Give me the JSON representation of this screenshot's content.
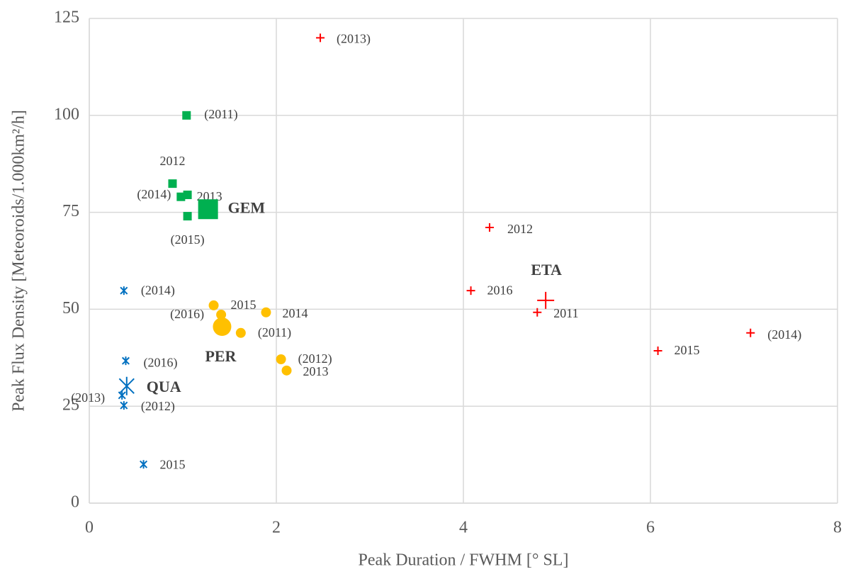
{
  "chart_data": {
    "type": "scatter",
    "x_label": "Peak Duration / FWHM [° SL]",
    "y_label": "Peak Flux Density [Meteoroids/1.000km²/h]",
    "xlim": [
      0,
      8
    ],
    "xticks": [
      0,
      2,
      4,
      6,
      8
    ],
    "ylim": [
      0,
      125
    ],
    "yticks": [
      0,
      25,
      50,
      75,
      100,
      125
    ],
    "grid": true,
    "series": [
      {
        "name": "GEM",
        "color": "#00b050",
        "marker": "square",
        "x": [
          1.04,
          0.89,
          0.98,
          1.05,
          1.05
        ],
        "values": [
          100,
          82.4,
          79,
          79.5,
          74
        ],
        "labels": [
          "(2011)",
          "2012",
          "(2014)",
          "2013",
          "(2015)"
        ],
        "mean": {
          "x": 1.27,
          "y": 75.8
        }
      },
      {
        "name": "PER",
        "color": "#ffc000",
        "marker": "circle",
        "x": [
          1.33,
          1.41,
          1.89,
          1.62,
          2.05,
          2.11
        ],
        "values": [
          51,
          48.6,
          49.2,
          43.9,
          37.1,
          34.2
        ],
        "labels": [
          "2015",
          "(2016)",
          "2014",
          "(2011)",
          "(2012)",
          "2013"
        ],
        "mean": {
          "x": 1.42,
          "y": 45.5
        }
      },
      {
        "name": "QUA",
        "color": "#0070c0",
        "marker": "asterisk",
        "x": [
          0.37,
          0.39,
          0.35,
          0.37,
          0.58
        ],
        "values": [
          54.8,
          36.7,
          27.8,
          25.2,
          10
        ],
        "labels": [
          "(2014)",
          "(2016)",
          "(2013)",
          "(2012)",
          "2015"
        ],
        "mean": {
          "x": 0.4,
          "y": 30.2
        }
      },
      {
        "name": "ETA",
        "color": "#ff0000",
        "marker": "plus",
        "x": [
          2.47,
          4.28,
          4.08,
          4.79,
          6.08,
          7.07
        ],
        "values": [
          120,
          71.1,
          54.8,
          49.2,
          39.3,
          43.9
        ],
        "labels": [
          "(2013)",
          "2012",
          "2016",
          "2011",
          "2015",
          "(2014)"
        ],
        "mean": {
          "x": 4.88,
          "y": 52.3
        }
      }
    ]
  }
}
